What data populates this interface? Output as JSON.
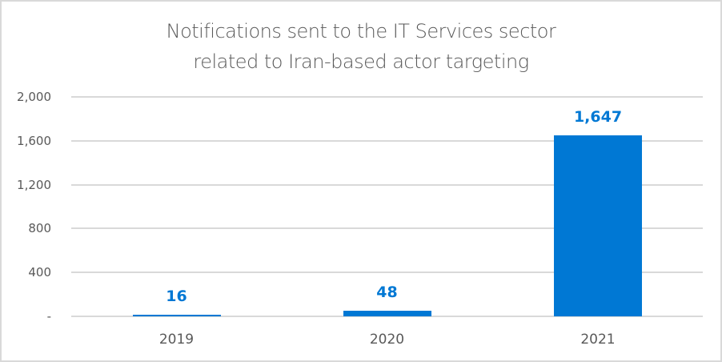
{
  "chart_data": {
    "type": "bar",
    "title": "Notifications sent to the IT Services sector related to Iran-based actor targeting",
    "title_lines": [
      "Notifications sent to the IT Services sector",
      "related to Iran-based actor targeting"
    ],
    "categories": [
      "2019",
      "2020",
      "2021"
    ],
    "values": [
      16,
      48,
      1647
    ],
    "data_labels": [
      "16",
      "48",
      "1,647"
    ],
    "xlabel": "",
    "ylabel": "",
    "ylim": [
      0,
      2000
    ],
    "yticks": [
      0,
      400,
      800,
      1200,
      1600,
      2000
    ],
    "ytick_labels": [
      "-",
      "400",
      "800",
      "1,200",
      "1,600",
      "2,000"
    ],
    "grid": true,
    "legend": null,
    "bar_color": "#0078d4"
  }
}
